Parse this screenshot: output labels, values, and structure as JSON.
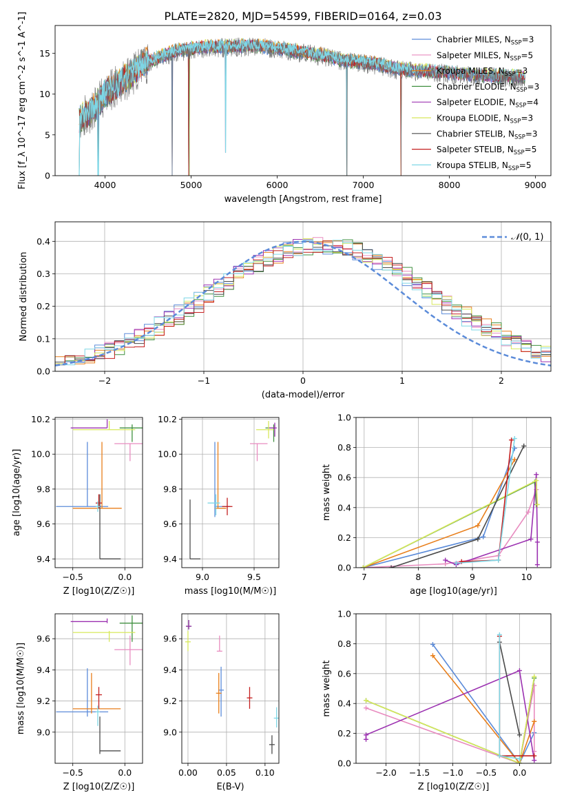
{
  "figure": {
    "title": "PLATE=2820, MJD=54599, FIBERID=0164, z=0.03"
  },
  "series": [
    {
      "name": "Chabrier MILES",
      "nssp": "3",
      "color": "#5b8bd9"
    },
    {
      "name": "Salpeter MILES",
      "nssp": "5",
      "color": "#e88bbf"
    },
    {
      "name": "Kroupa MILES",
      "nssp": "3",
      "color": "#e87e1a"
    },
    {
      "name": "Chabrier ELODIE",
      "nssp": "3",
      "color": "#3f8f3f"
    },
    {
      "name": "Salpeter ELODIE",
      "nssp": "4",
      "color": "#9b30b0"
    },
    {
      "name": "Kroupa ELODIE",
      "nssp": "3",
      "color": "#d7e85a"
    },
    {
      "name": "Chabrier STELIB",
      "nssp": "3",
      "color": "#4a4a4a"
    },
    {
      "name": "Salpeter STELIB",
      "nssp": "5",
      "color": "#c41e1e"
    },
    {
      "name": "Kroupa STELIB",
      "nssp": "5",
      "color": "#7ed7e6"
    }
  ],
  "chart_data": [
    {
      "id": "spectrum",
      "type": "line",
      "xlabel": "wavelength [Angstrom, rest frame]",
      "ylabel": "Flux [f_λ 10^-17 erg cm^-2 s^-1 A^-1]",
      "xlim": [
        3420,
        9180
      ],
      "ylim": [
        0,
        18.4
      ],
      "xticks": [
        4000,
        5000,
        6000,
        7000,
        8000,
        9000
      ],
      "yticks": [
        0,
        5,
        10,
        15
      ],
      "grid": false,
      "legend": "top-right",
      "data_trend": {
        "x": [
          3700,
          3800,
          3900,
          4000,
          4100,
          4200,
          4300,
          4400,
          4500,
          4600,
          4800,
          5000,
          5200,
          5400,
          5600,
          5800,
          6000,
          6200,
          6400,
          6600,
          6800,
          7000,
          7200,
          7400,
          7600,
          7800,
          8000,
          8200,
          8400,
          8600,
          8800
        ],
        "y": [
          7.0,
          7.6,
          8.6,
          10.0,
          10.8,
          11.6,
          12.4,
          13.4,
          14.0,
          14.4,
          15.2,
          15.6,
          15.8,
          15.8,
          15.9,
          15.9,
          15.6,
          15.3,
          15.0,
          14.6,
          14.1,
          13.9,
          13.6,
          13.1,
          12.9,
          12.8,
          12.6,
          12.4,
          12.3,
          12.2,
          12.1
        ]
      },
      "absorption_drops": [
        {
          "x": 3700,
          "y": 0
        },
        {
          "x": 3920,
          "y": 0
        },
        {
          "x": 4780,
          "y": 0
        },
        {
          "x": 4975,
          "y": 0
        },
        {
          "x": 5400,
          "y": 2.8
        },
        {
          "x": 6810,
          "y": 0
        },
        {
          "x": 7440,
          "y": 0
        }
      ]
    },
    {
      "id": "residual-hist",
      "type": "line",
      "xlabel": "(data-model)/error",
      "ylabel": "Normed distribution",
      "xlim": [
        -2.5,
        2.5
      ],
      "ylim": [
        0,
        0.46
      ],
      "xticks": [
        -2,
        -1,
        0,
        1,
        2
      ],
      "yticks": [
        0.0,
        0.1,
        0.2,
        0.3,
        0.4
      ],
      "grid": true,
      "legend": "top-right",
      "reference_curve": "N(0,1)"
    },
    {
      "id": "age-vs-Z",
      "type": "scatter",
      "xlabel": "Z [log10(Z/Z☉)]",
      "ylabel": "age [log10(age/yr)]",
      "xlim": [
        -0.67,
        0.17
      ],
      "ylim": [
        9.35,
        10.21
      ],
      "xticks": [
        -0.5,
        0.0
      ],
      "yticks": [
        9.4,
        9.6,
        9.8,
        10.0,
        10.2
      ],
      "grid": true,
      "points": [
        {
          "s": 0,
          "x": -0.36,
          "xerr": [
            0.3,
            0.2
          ],
          "y": 9.7,
          "yerr": [
            0.0,
            0.37
          ]
        },
        {
          "s": 1,
          "x": 0.05,
          "xerr": [
            0.15,
            0.15
          ],
          "y": 10.06,
          "yerr": [
            0.1,
            0.0
          ]
        },
        {
          "s": 2,
          "x": -0.22,
          "xerr": [
            0.28,
            0.19
          ],
          "y": 9.69,
          "yerr": [
            0.0,
            0.38
          ]
        },
        {
          "s": 3,
          "x": 0.07,
          "xerr": [
            0.12,
            0.1
          ],
          "y": 10.15,
          "yerr": [
            0.08,
            0.02
          ]
        },
        {
          "s": 4,
          "x": -0.17,
          "xerr": [
            0.35,
            0.0
          ],
          "y": 10.15,
          "yerr": [
            0.0,
            0.05
          ]
        },
        {
          "s": 5,
          "x": -0.15,
          "xerr": [
            0.35,
            0.25
          ],
          "y": 10.14,
          "yerr": [
            0.0,
            0.05
          ]
        },
        {
          "s": 6,
          "x": -0.24,
          "xerr": [
            0.0,
            0.2
          ],
          "y": 9.4,
          "yerr": [
            0.0,
            0.37
          ]
        },
        {
          "s": 7,
          "x": -0.25,
          "xerr": [
            0.03,
            0.03
          ],
          "y": 9.72,
          "yerr": [
            0.03,
            0.05
          ]
        },
        {
          "s": 8,
          "x": -0.26,
          "xerr": [
            0.02,
            0.02
          ],
          "y": 9.7,
          "yerr": [
            0.03,
            0.03
          ]
        }
      ]
    },
    {
      "id": "age-vs-mass",
      "type": "scatter",
      "xlabel": "mass [log10(M/M☉)]",
      "ylabel": "",
      "xlim": [
        8.8,
        9.74
      ],
      "ylim": [
        9.35,
        10.21
      ],
      "xticks": [
        9.0,
        9.5
      ],
      "yticks": [
        9.4,
        9.6,
        9.8,
        10.0,
        10.2
      ],
      "grid": true,
      "points": [
        {
          "s": 0,
          "x": 9.12,
          "xerr": [
            0.0,
            0.15
          ],
          "y": 9.7,
          "yerr": [
            0.06,
            0.37
          ]
        },
        {
          "s": 1,
          "x": 9.53,
          "xerr": [
            0.07,
            0.1
          ],
          "y": 10.06,
          "yerr": [
            0.1,
            0.0
          ]
        },
        {
          "s": 2,
          "x": 9.15,
          "xerr": [
            0.03,
            0.08
          ],
          "y": 9.69,
          "yerr": [
            0.0,
            0.38
          ]
        },
        {
          "s": 3,
          "x": 9.69,
          "xerr": [
            0.08,
            0.01
          ],
          "y": 10.15,
          "yerr": [
            0.08,
            0.02
          ]
        },
        {
          "s": 4,
          "x": 9.7,
          "xerr": [
            0.06,
            0.02
          ],
          "y": 10.15,
          "yerr": [
            0.05,
            0.03
          ]
        },
        {
          "s": 5,
          "x": 9.64,
          "xerr": [
            0.12,
            0.05
          ],
          "y": 10.14,
          "yerr": [
            0.05,
            0.05
          ]
        },
        {
          "s": 6,
          "x": 8.88,
          "xerr": [
            0.0,
            0.1
          ],
          "y": 9.4,
          "yerr": [
            0.0,
            0.34
          ]
        },
        {
          "s": 7,
          "x": 9.24,
          "xerr": [
            0.05,
            0.05
          ],
          "y": 9.7,
          "yerr": [
            0.05,
            0.05
          ]
        },
        {
          "s": 8,
          "x": 9.13,
          "xerr": [
            0.08,
            0.04
          ],
          "y": 9.72,
          "yerr": [
            0.07,
            0.05
          ]
        }
      ]
    },
    {
      "id": "weight-vs-age",
      "type": "line",
      "xlabel": "age [log10(age/yr)]",
      "ylabel": "mass weight",
      "xlim": [
        6.85,
        10.45
      ],
      "ylim": [
        0,
        1.0
      ],
      "xticks": [
        7,
        8,
        9,
        10
      ],
      "yticks": [
        0.0,
        0.2,
        0.4,
        0.6,
        0.8,
        1.0
      ],
      "grid": true,
      "lines": [
        {
          "s": 0,
          "x": [
            6.98,
            9.2,
            9.78
          ],
          "y": [
            0.0,
            0.205,
            0.795
          ]
        },
        {
          "s": 1,
          "x": [
            6.98,
            8.5,
            9.48,
            10.03,
            10.18
          ],
          "y": [
            0.0,
            0.025,
            0.08,
            0.37,
            0.52
          ]
        },
        {
          "s": 2,
          "x": [
            6.98,
            9.1,
            9.78
          ],
          "y": [
            0.0,
            0.28,
            0.72
          ]
        },
        {
          "s": 3,
          "x": [
            6.98,
            10.15,
            10.18
          ],
          "y": [
            0.0,
            0.57,
            0.42
          ]
        },
        {
          "s": 4,
          "x": [
            8.5,
            8.7,
            10.08,
            10.18,
            10.2,
            10.2
          ],
          "y": [
            0.05,
            0.02,
            0.19,
            0.62,
            0.17,
            0.02
          ]
        },
        {
          "s": 5,
          "x": [
            6.98,
            10.18,
            10.2
          ],
          "y": [
            0.0,
            0.58,
            0.42
          ]
        },
        {
          "s": 6,
          "x": [
            7.5,
            9.1,
            9.95
          ],
          "y": [
            0.0,
            0.19,
            0.81
          ]
        },
        {
          "s": 7,
          "x": [
            8.8,
            9.48,
            9.72
          ],
          "y": [
            0.04,
            0.05,
            0.85
          ]
        },
        {
          "s": 8,
          "x": [
            8.7,
            9.48,
            9.78
          ],
          "y": [
            0.03,
            0.05,
            0.86
          ]
        }
      ]
    },
    {
      "id": "mass-vs-Z",
      "type": "scatter",
      "xlabel": "Z [log10(Z/Z☉)]",
      "ylabel": "mass [log10(M/M☉)]",
      "xlim": [
        -0.67,
        0.17
      ],
      "ylim": [
        8.8,
        9.76
      ],
      "xticks": [
        -0.5,
        0.0
      ],
      "yticks": [
        9.0,
        9.2,
        9.4,
        9.6
      ],
      "grid": true,
      "points": [
        {
          "s": 0,
          "x": -0.36,
          "xerr": [
            0.3,
            0.2
          ],
          "y": 9.13,
          "yerr": [
            0.03,
            0.28
          ]
        },
        {
          "s": 1,
          "x": 0.05,
          "xerr": [
            0.15,
            0.15
          ],
          "y": 9.53,
          "yerr": [
            0.1,
            0.09
          ]
        },
        {
          "s": 2,
          "x": -0.32,
          "xerr": [
            0.18,
            0.28
          ],
          "y": 9.15,
          "yerr": [
            0.03,
            0.23
          ]
        },
        {
          "s": 3,
          "x": 0.07,
          "xerr": [
            0.12,
            0.1
          ],
          "y": 9.7,
          "yerr": [
            0.12,
            0.05
          ]
        },
        {
          "s": 4,
          "x": -0.17,
          "xerr": [
            0.35,
            0.0
          ],
          "y": 9.71,
          "yerr": [
            0.01,
            0.02
          ]
        },
        {
          "s": 5,
          "x": -0.15,
          "xerr": [
            0.35,
            0.25
          ],
          "y": 9.64,
          "yerr": [
            0.06,
            0.01
          ]
        },
        {
          "s": 6,
          "x": -0.24,
          "xerr": [
            0.0,
            0.2
          ],
          "y": 8.88,
          "yerr": [
            0.02,
            0.22
          ]
        },
        {
          "s": 7,
          "x": -0.25,
          "xerr": [
            0.03,
            0.03
          ],
          "y": 9.24,
          "yerr": [
            0.09,
            0.05
          ]
        },
        {
          "s": 8,
          "x": -0.26,
          "xerr": [
            0.02,
            0.02
          ],
          "y": 9.13,
          "yerr": [
            0.09,
            0.04
          ]
        }
      ]
    },
    {
      "id": "mass-vs-ebv",
      "type": "scatter",
      "xlabel": "E(B-V)",
      "ylabel": "",
      "xlim": [
        -0.008,
        0.118
      ],
      "ylim": [
        8.8,
        9.76
      ],
      "xticks": [
        0.0,
        0.05,
        0.1
      ],
      "yticks": [
        9.0,
        9.2,
        9.4,
        9.6
      ],
      "grid": true,
      "points": [
        {
          "s": 0,
          "x": 0.043,
          "y": 9.27,
          "yerr": [
            0.17,
            0.15
          ]
        },
        {
          "s": 1,
          "x": 0.041,
          "y": 9.52,
          "yerr": [
            0.0,
            0.1
          ]
        },
        {
          "s": 2,
          "x": 0.04,
          "y": 9.25,
          "yerr": [
            0.13,
            0.13
          ]
        },
        {
          "s": 3,
          "x": 0.001,
          "y": 9.68,
          "yerr": [
            0.02,
            0.04
          ]
        },
        {
          "s": 4,
          "x": 0.001,
          "y": 9.68,
          "yerr": [
            0.02,
            0.04
          ]
        },
        {
          "s": 5,
          "x": 0.0,
          "y": 9.58,
          "yerr": [
            0.06,
            0.07
          ]
        },
        {
          "s": 6,
          "x": 0.109,
          "y": 8.92,
          "yerr": [
            0.06,
            0.06
          ]
        },
        {
          "s": 7,
          "x": 0.08,
          "y": 9.22,
          "yerr": [
            0.07,
            0.07
          ]
        },
        {
          "s": 8,
          "x": 0.115,
          "y": 9.09,
          "yerr": [
            0.06,
            0.07
          ]
        }
      ]
    },
    {
      "id": "weight-vs-Z",
      "type": "line",
      "xlabel": "Z [log10(Z/Z☉)]",
      "ylabel": "mass weight",
      "xlim": [
        -2.45,
        0.47
      ],
      "ylim": [
        0,
        1.0
      ],
      "xticks": [
        -2.0,
        -1.5,
        -1.0,
        -0.5,
        0.0
      ],
      "yticks": [
        0.0,
        0.2,
        0.4,
        0.6,
        0.8,
        1.0
      ],
      "grid": true,
      "lines": [
        {
          "s": 0,
          "x": [
            -1.3,
            0.0,
            0.22
          ],
          "y": [
            0.795,
            0.0,
            0.205
          ]
        },
        {
          "s": 1,
          "x": [
            -2.3,
            0.0,
            0.22,
            0.22
          ],
          "y": [
            0.37,
            0.0,
            0.52,
            0.08
          ]
        },
        {
          "s": 2,
          "x": [
            -1.3,
            0.0,
            0.22
          ],
          "y": [
            0.72,
            0.0,
            0.28
          ]
        },
        {
          "s": 3,
          "x": [
            -2.3,
            0.0,
            0.22
          ],
          "y": [
            0.42,
            0.0,
            0.57
          ]
        },
        {
          "s": 4,
          "x": [
            -2.3,
            -2.3,
            0.0,
            0.22
          ],
          "y": [
            0.16,
            0.19,
            0.62,
            0.02
          ]
        },
        {
          "s": 5,
          "x": [
            -2.3,
            0.0,
            0.22
          ],
          "y": [
            0.42,
            0.0,
            0.58
          ]
        },
        {
          "s": 6,
          "x": [
            -0.3,
            0.0
          ],
          "y": [
            0.81,
            0.19
          ]
        },
        {
          "s": 7,
          "x": [
            -0.3,
            -0.3,
            0.22
          ],
          "y": [
            0.85,
            0.05,
            0.05
          ]
        },
        {
          "s": 8,
          "x": [
            -0.3,
            -0.3,
            0.0
          ],
          "y": [
            0.86,
            0.05,
            0.03
          ]
        }
      ]
    }
  ]
}
